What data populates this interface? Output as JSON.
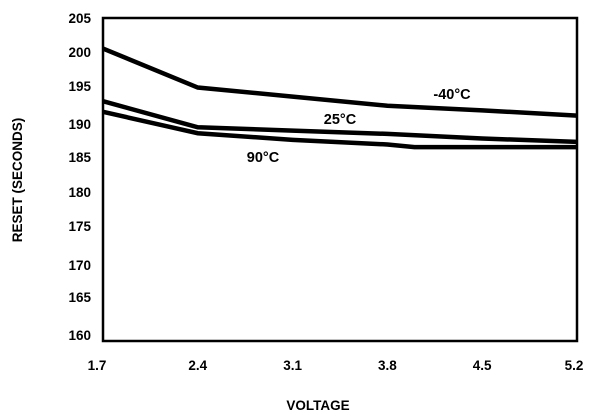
{
  "chart_data": {
    "type": "line",
    "title": "",
    "xlabel": "VOLTAGE",
    "ylabel": "RESET (SECONDS)",
    "xlim": [
      1.7,
      5.2
    ],
    "ylim": [
      160,
      205
    ],
    "x_tick_labels": [
      "1.7",
      "2.4",
      "3.1",
      "3.8",
      "4.5",
      "5.2"
    ],
    "x_ticks": [
      1.7,
      2.4,
      3.1,
      3.8,
      4.5,
      5.2
    ],
    "y_tick_labels": [
      "205",
      "200",
      "195",
      "190",
      "185",
      "180",
      "175",
      "170",
      "165",
      "160"
    ],
    "y_ticks": [
      205,
      200,
      195,
      190,
      185,
      180,
      175,
      170,
      165,
      160
    ],
    "grid": false,
    "legend": "none",
    "series": [
      {
        "label": "-40°C",
        "color": "#000000",
        "points": [
          [
            1.7,
            200.5
          ],
          [
            2.4,
            194.8
          ],
          [
            3.1,
            193.6
          ],
          [
            3.8,
            192.4
          ],
          [
            4.5,
            191.8
          ],
          [
            5.2,
            191.1
          ]
        ]
      },
      {
        "label": "25°C",
        "color": "#000000",
        "points": [
          [
            1.7,
            193.0
          ],
          [
            2.4,
            189.5
          ],
          [
            3.1,
            189.0
          ],
          [
            3.8,
            188.5
          ],
          [
            4.5,
            187.8
          ],
          [
            5.2,
            187.3
          ]
        ]
      },
      {
        "label": "90°C",
        "color": "#000000",
        "points": [
          [
            1.7,
            191.6
          ],
          [
            2.4,
            188.6
          ],
          [
            3.1,
            187.6
          ],
          [
            3.8,
            186.9
          ],
          [
            4.0,
            186.5
          ],
          [
            5.2,
            186.5
          ]
        ]
      }
    ]
  }
}
